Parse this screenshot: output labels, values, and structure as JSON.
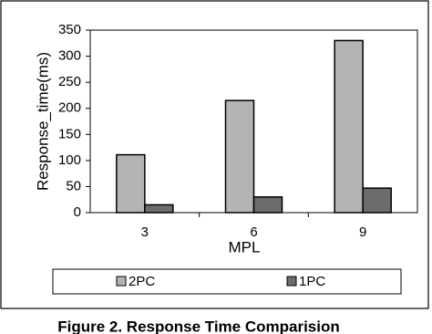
{
  "chart_data": {
    "type": "bar",
    "caption": "Figure 2. Response Time Comparision",
    "x_label": "MPL",
    "y_label": "Response_time(ms)",
    "categories": [
      "3",
      "6",
      "9"
    ],
    "series": [
      {
        "name": "2PC",
        "color": "#b4b4b4",
        "values": [
          111,
          215,
          330
        ]
      },
      {
        "name": "1PC",
        "color": "#6c6c6c",
        "values": [
          15,
          30,
          47
        ]
      }
    ],
    "ylim": [
      0,
      350
    ],
    "yticks": [
      0,
      50,
      100,
      150,
      200,
      250,
      300,
      350
    ],
    "grid": false,
    "legend": "bottom"
  }
}
